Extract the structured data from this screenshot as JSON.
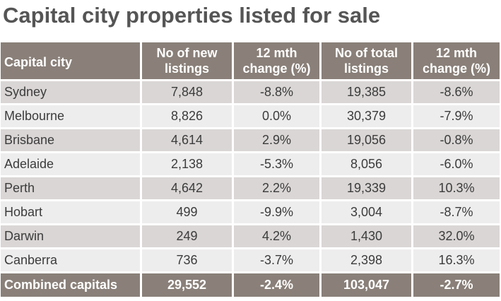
{
  "title": "Capital city properties listed for sale",
  "table": {
    "headers": [
      {
        "line1": "Capital city",
        "line2": ""
      },
      {
        "line1": "No of new",
        "line2": "listings"
      },
      {
        "line1": "12 mth",
        "line2": "change (%)"
      },
      {
        "line1": "No of total",
        "line2": "listings"
      },
      {
        "line1": "12 mth",
        "line2": "change (%)"
      }
    ],
    "rows": [
      [
        "Sydney",
        "7,848",
        "-8.8%",
        "19,385",
        "-8.6%"
      ],
      [
        "Melbourne",
        "8,826",
        "0.0%",
        "30,379",
        "-7.9%"
      ],
      [
        "Brisbane",
        "4,614",
        "2.9%",
        "19,056",
        "-0.8%"
      ],
      [
        "Adelaide",
        "2,138",
        "-5.3%",
        "8,056",
        "-6.0%"
      ],
      [
        "Perth",
        "4,642",
        "2.2%",
        "19,339",
        "10.3%"
      ],
      [
        "Hobart",
        "499",
        "-9.9%",
        "3,004",
        "-8.7%"
      ],
      [
        "Darwin",
        "249",
        "4.2%",
        "1,430",
        "32.0%"
      ],
      [
        "Canberra",
        "736",
        "-3.7%",
        "2,398",
        "16.3%"
      ]
    ],
    "total": [
      "Combined capitals",
      "29,552",
      "-2.4%",
      "103,047",
      "-2.7%"
    ]
  },
  "colors": {
    "header_bg": "#8a8079",
    "row_odd": "#d9d6d5",
    "row_even": "#eeeded",
    "title": "#555555"
  }
}
